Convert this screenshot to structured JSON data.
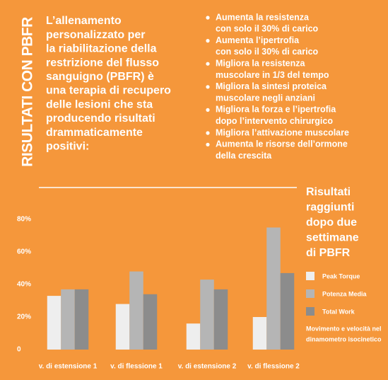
{
  "side_title": "RISULTATI CON PBFR",
  "intro": [
    "L’allenamento",
    "personalizzato per",
    "la riabilitazione della",
    "restrizione del flusso",
    "sanguigno (PBFR) è",
    "una terapia di recupero",
    "delle lesioni che sta",
    "producendo risultati",
    "drammaticamente",
    "positivi:"
  ],
  "bullets": [
    [
      "Aumenta la resistenza",
      "con solo il 30% di carico"
    ],
    [
      "Aumenta l’ipertrofia",
      "con solo il 30% di carico"
    ],
    [
      "Migliora la resistenza",
      "muscolare in 1/3 del tempo"
    ],
    [
      "Migliora la sintesi proteica",
      "muscolare negli anziani"
    ],
    [
      "Migliora la forza e l’ipertrofia",
      "dopo l’intervento chirurgico"
    ],
    [
      "Migliora l’attivazione muscolare"
    ],
    [
      "Aumenta le risorse dell’ormone",
      "della crescita"
    ]
  ],
  "chart_data": {
    "type": "bar",
    "legend_title": [
      "Risultati",
      "raggiunti",
      "dopo due",
      "settimane",
      "di PBFR"
    ],
    "note": [
      "Movimento e velocità nel",
      "dinamometro isocinetico"
    ],
    "categories": [
      "v. di estensione 1",
      "v. di flessione 1",
      "v. di estensione 2",
      "v. di flessione 2"
    ],
    "series": [
      {
        "name": "Peak Torque",
        "color": "#eeeeee",
        "values": [
          33,
          28,
          16,
          20
        ]
      },
      {
        "name": "Potenza Media",
        "color": "#b5b5b5",
        "values": [
          37,
          48,
          43,
          75
        ]
      },
      {
        "name": "Total Work",
        "color": "#8c8c8c",
        "values": [
          37,
          34,
          37,
          47
        ]
      }
    ],
    "ylim": [
      0,
      100
    ],
    "yticks": [
      0,
      {
        "value": 20,
        "label": "20%"
      },
      {
        "value": 40,
        "label": "40%"
      },
      {
        "value": 60,
        "label": "60%"
      },
      {
        "value": 80,
        "label": "80%"
      }
    ],
    "grid": false
  }
}
